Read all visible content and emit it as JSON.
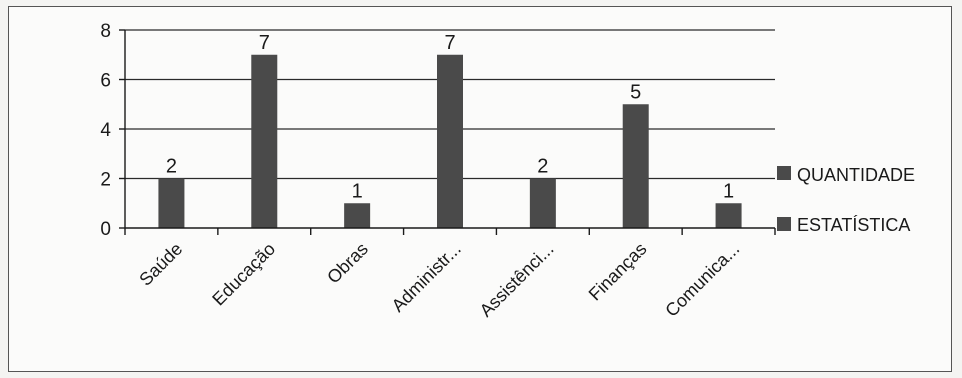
{
  "chart_data": {
    "type": "bar",
    "categories": [
      "Saúde",
      "Educação",
      "Obras",
      "Administr...",
      "Assistênci...",
      "Finanças",
      "Comunica..."
    ],
    "series": [
      {
        "name": "QUANTIDADE",
        "values": [
          2,
          7,
          1,
          7,
          2,
          5,
          1
        ]
      }
    ],
    "data_labels": [
      "2",
      "7",
      "1",
      "7",
      "2",
      "5",
      "1"
    ],
    "legend": [
      "QUANTIDADE",
      "ESTATÍSTICA"
    ],
    "yticks": [
      "0",
      "2",
      "4",
      "6",
      "8"
    ],
    "ylim": [
      0,
      8
    ],
    "grid": true,
    "legend_position": "right",
    "bar_color": "#4a4a4a"
  }
}
